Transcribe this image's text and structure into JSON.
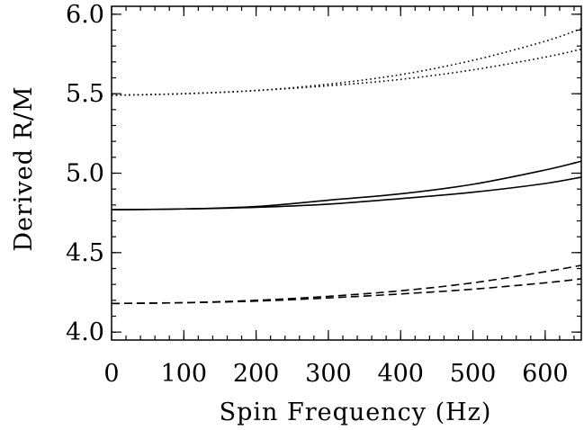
{
  "chart_data": {
    "type": "line",
    "title": "",
    "xlabel": "Spin Frequency (Hz)",
    "ylabel": "Derived R/M",
    "xlim": [
      0,
      650
    ],
    "ylim": [
      3.95,
      6.05
    ],
    "x_ticks": [
      0,
      100,
      200,
      300,
      400,
      500,
      600
    ],
    "x_tick_labels": [
      "0",
      "100",
      "200",
      "300",
      "400",
      "500",
      "600"
    ],
    "y_ticks": [
      4.0,
      4.5,
      5.0,
      5.5,
      6.0
    ],
    "y_tick_labels": [
      "4.0",
      "4.5",
      "5.0",
      "5.5",
      "6.0"
    ],
    "x_minor_step": 20,
    "y_minor_step": 0.1,
    "grid": false,
    "legend": "none",
    "series": [
      {
        "style": "dotted",
        "x": [
          0,
          100,
          200,
          300,
          400,
          500,
          600,
          650
        ],
        "y": [
          5.49,
          5.5,
          5.52,
          5.56,
          5.62,
          5.71,
          5.83,
          5.91
        ]
      },
      {
        "style": "dotted",
        "x": [
          0,
          100,
          200,
          300,
          400,
          500,
          600,
          650
        ],
        "y": [
          5.49,
          5.5,
          5.52,
          5.55,
          5.59,
          5.65,
          5.73,
          5.78
        ]
      },
      {
        "style": "solid",
        "x": [
          0,
          100,
          200,
          300,
          400,
          500,
          600,
          650
        ],
        "y": [
          4.77,
          4.775,
          4.79,
          4.83,
          4.87,
          4.93,
          5.02,
          5.075
        ]
      },
      {
        "style": "solid",
        "x": [
          0,
          100,
          200,
          300,
          400,
          500,
          600,
          650
        ],
        "y": [
          4.77,
          4.775,
          4.785,
          4.805,
          4.84,
          4.88,
          4.935,
          4.975
        ]
      },
      {
        "style": "dashed",
        "x": [
          0,
          100,
          200,
          300,
          400,
          500,
          600,
          650
        ],
        "y": [
          4.18,
          4.185,
          4.2,
          4.225,
          4.26,
          4.31,
          4.38,
          4.42
        ]
      },
      {
        "style": "dashed",
        "x": [
          0,
          100,
          200,
          300,
          400,
          500,
          600,
          650
        ],
        "y": [
          4.18,
          4.185,
          4.195,
          4.215,
          4.24,
          4.27,
          4.31,
          4.335
        ]
      }
    ]
  }
}
